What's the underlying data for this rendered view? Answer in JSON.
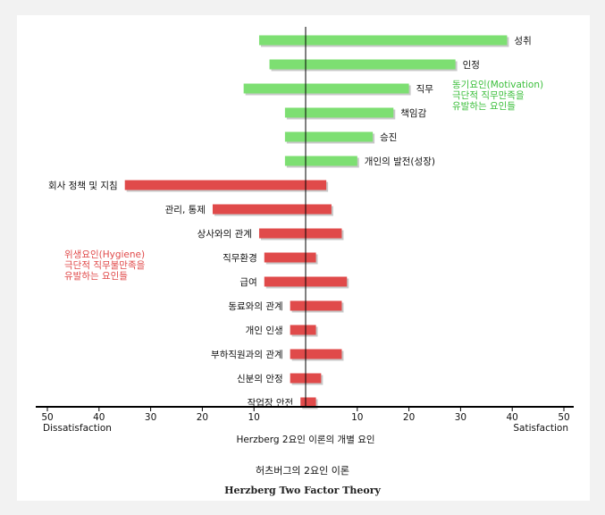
{
  "chart_data": {
    "type": "bar",
    "orientation": "horizontal-diverging",
    "xlim": [
      -50,
      50
    ],
    "xticks": [
      -50,
      -40,
      -30,
      -20,
      -10,
      10,
      20,
      30,
      40,
      50
    ],
    "xtick_labels": [
      "50",
      "40",
      "30",
      "20",
      "10",
      "10",
      "20",
      "30",
      "40",
      "50"
    ],
    "xlabel_left": "Dissatisfaction",
    "xlabel_right": "Satisfaction",
    "axis_title": "Herzberg 2요인 이론의 개별 요인",
    "series": [
      {
        "name": "동기요인(Motivation)",
        "color": "#7ddf72",
        "items": [
          {
            "label": "성취",
            "start": -9,
            "end": 39
          },
          {
            "label": "인정",
            "start": -7,
            "end": 29
          },
          {
            "label": "직무",
            "start": -12,
            "end": 20
          },
          {
            "label": "책임감",
            "start": -4,
            "end": 17
          },
          {
            "label": "승진",
            "start": -4,
            "end": 13
          },
          {
            "label": "개인의 발전(성장)",
            "start": -4,
            "end": 10
          }
        ]
      },
      {
        "name": "위생요인(Hygiene)",
        "color": "#e04a4a",
        "items": [
          {
            "label": "회사 정책 및 지침",
            "start": -35,
            "end": 4
          },
          {
            "label": "관리, 통제",
            "start": -18,
            "end": 5
          },
          {
            "label": "상사와의 관계",
            "start": -9,
            "end": 7
          },
          {
            "label": "직무환경",
            "start": -8,
            "end": 2
          },
          {
            "label": "급여",
            "start": -8,
            "end": 8
          },
          {
            "label": "동료와의 관계",
            "start": -3,
            "end": 7
          },
          {
            "label": "개인 인생",
            "start": -3,
            "end": 2
          },
          {
            "label": "부하직원과의 관계",
            "start": -3,
            "end": 7
          },
          {
            "label": "신분의 안정",
            "start": -3,
            "end": 3
          },
          {
            "label": "작업장 안전",
            "start": -1,
            "end": 2
          }
        ]
      }
    ],
    "legend_text": {
      "motivation": [
        "동기요인(Motivation)",
        "극단적 직무만족을",
        "유발하는 요인들"
      ],
      "hygiene": [
        "위생요인(Hygiene)",
        "극단적 직무불만족을",
        "유발하는 요인들"
      ]
    }
  },
  "caption": {
    "ko": "허츠버그의 2요인 이론",
    "en": "Herzberg Two Factor Theory"
  }
}
